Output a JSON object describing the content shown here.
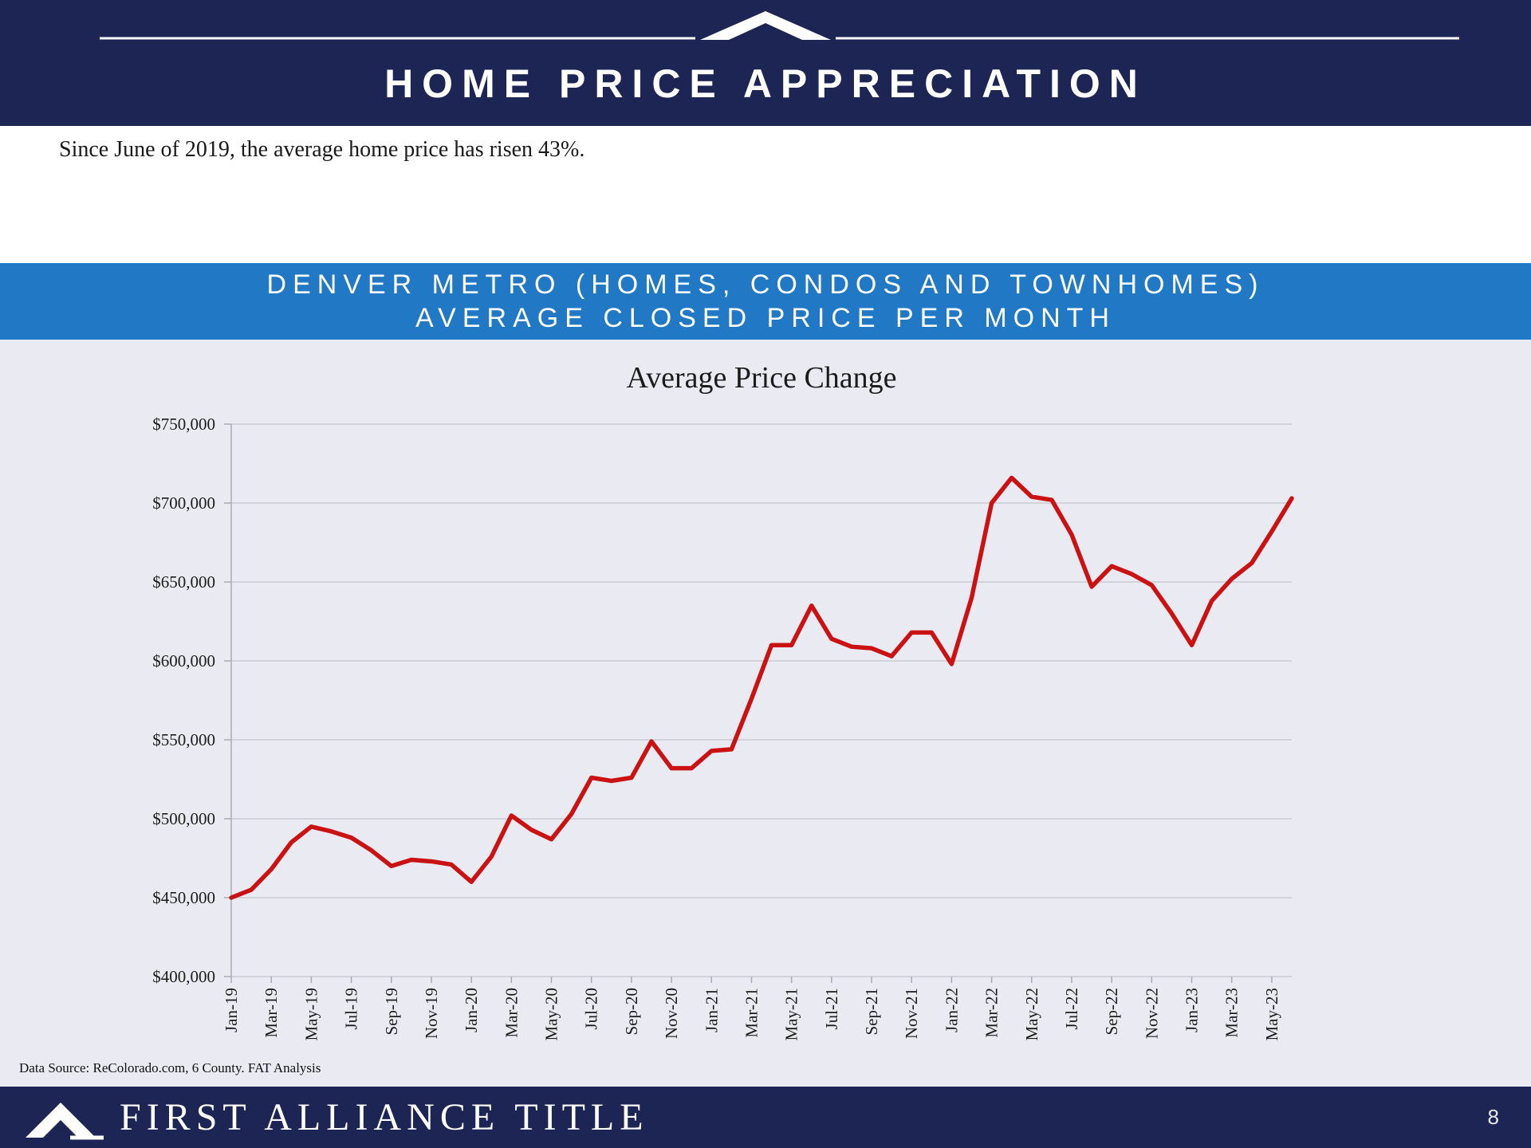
{
  "header": {
    "title": "HOME PRICE APPRECIATION"
  },
  "intro": {
    "text": "Since June of 2019, the average home price has risen 43%."
  },
  "banner": {
    "line1": "DENVER METRO (HOMES, CONDOS AND TOWNHOMES)",
    "line2": "AVERAGE CLOSED PRICE PER MONTH"
  },
  "chart_data": {
    "type": "line",
    "title": "Average Price Change",
    "xlabel": "",
    "ylabel": "",
    "grid": true,
    "legend": "none",
    "ylim": [
      400000,
      750000
    ],
    "y_ticks": [
      {
        "value": 400000,
        "label": "$400,000"
      },
      {
        "value": 450000,
        "label": "$450,000"
      },
      {
        "value": 500000,
        "label": "$500,000"
      },
      {
        "value": 550000,
        "label": "$550,000"
      },
      {
        "value": 600000,
        "label": "$600,000"
      },
      {
        "value": 650000,
        "label": "$650,000"
      },
      {
        "value": 700000,
        "label": "$700,000"
      },
      {
        "value": 750000,
        "label": "$750,000"
      }
    ],
    "x_tick_interval": 2,
    "x": [
      "Jan-19",
      "Feb-19",
      "Mar-19",
      "Apr-19",
      "May-19",
      "Jun-19",
      "Jul-19",
      "Aug-19",
      "Sep-19",
      "Oct-19",
      "Nov-19",
      "Dec-19",
      "Jan-20",
      "Feb-20",
      "Mar-20",
      "Apr-20",
      "May-20",
      "Jun-20",
      "Jul-20",
      "Aug-20",
      "Sep-20",
      "Oct-20",
      "Nov-20",
      "Dec-20",
      "Jan-21",
      "Feb-21",
      "Mar-21",
      "Apr-21",
      "May-21",
      "Jun-21",
      "Jul-21",
      "Aug-21",
      "Sep-21",
      "Oct-21",
      "Nov-21",
      "Dec-21",
      "Jan-22",
      "Feb-22",
      "Mar-22",
      "Apr-22",
      "May-22",
      "Jun-22",
      "Jul-22",
      "Aug-22",
      "Sep-22",
      "Oct-22",
      "Nov-22",
      "Dec-22",
      "Jan-23",
      "Feb-23",
      "Mar-23",
      "Apr-23",
      "May-23",
      "Jun-23"
    ],
    "values": [
      450000,
      455000,
      468000,
      485000,
      495000,
      492000,
      488000,
      480000,
      470000,
      474000,
      473000,
      471000,
      460000,
      476000,
      502000,
      493000,
      487000,
      503000,
      526000,
      524000,
      526000,
      549000,
      532000,
      532000,
      543000,
      544000,
      576000,
      610000,
      610000,
      635000,
      614000,
      609000,
      608000,
      603000,
      618000,
      618000,
      598000,
      640000,
      700000,
      716000,
      704000,
      702000,
      680000,
      647000,
      660000,
      655000,
      648000,
      630000,
      610000,
      638000,
      652000,
      662000,
      682000,
      703000
    ],
    "line_color": "#cb1212",
    "grid_color": "#c9cbd2",
    "axis_color": "#a8abb5"
  },
  "footnote": "Data Source: ReColorado.com, 6 County.  FAT Analysis",
  "footer": {
    "brand": "FIRST ALLIANCE TITLE",
    "page_number": "8"
  },
  "colors": {
    "navy": "#1d2554",
    "banner_blue": "#2178c4",
    "chart_bg": "#e9eaf2"
  }
}
